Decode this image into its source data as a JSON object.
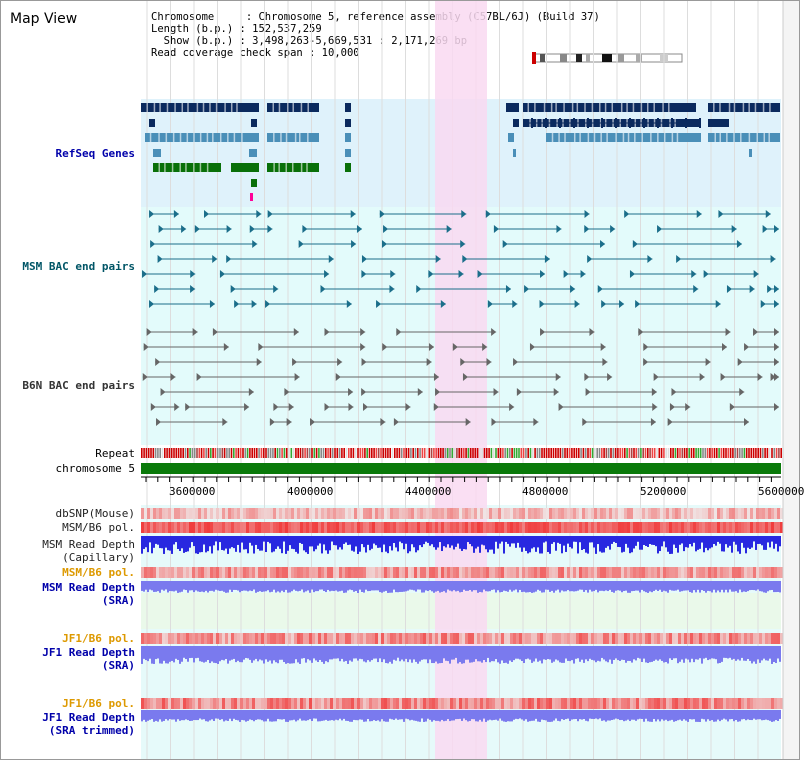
{
  "header": {
    "title": "Map View",
    "info_lines": [
      "Chromosome     : Chromosome 5, reference assembly (C57BL/6J) (Build 37)",
      "Length (b.p.) : 152,537,259",
      "  Show (b.p.) : 3,498,263-5,669,531 : 2,171,269 bp",
      "Read coverage check span : 10,000"
    ]
  },
  "tracks": {
    "refseq": "RefSeq Genes",
    "msm_bac": "MSM BAC end pairs",
    "b6n_bac": "B6N BAC end pairs",
    "repeat": "Repeat",
    "chromosome": "chromosome 5",
    "dbsnp": "dbSNP(Mouse)",
    "msm_b6_pol": "MSM/B6 pol.",
    "msm_depth_cap_1": "MSM Read Depth",
    "msm_depth_cap_2": "(Capillary)",
    "msm_b6_pol_2": "MSM/B6 pol.",
    "msm_depth_sra_1": "MSM Read Depth",
    "msm_depth_sra_2": "(SRA)",
    "jf1_b6_pol": "JF1/B6 pol.",
    "jf1_depth_sra_1": "JF1 Read Depth",
    "jf1_depth_sra_2": "(SRA)",
    "jf1_b6_pol_2": "JF1/B6 pol.",
    "jf1_depth_trim_1": "JF1 Read Depth",
    "jf1_depth_trim_2": "(SRA trimmed)"
  },
  "axis": {
    "ticks": [
      "3600000",
      "4000000",
      "4400000",
      "4800000",
      "5200000",
      "5600000"
    ]
  },
  "colors": {
    "refseq_bg": "#dff2fb",
    "bac_bg": "#e3fbfb",
    "highlight": "#f9d9f1",
    "gene_dark": "#0b2a5e",
    "gene_mid": "#4a8fb8",
    "gene_green": "#097009",
    "chromosome": "#0a7a0a",
    "snp": "#f6a3a3",
    "depth_blue": "#2828e0",
    "depth_light": "#7a7aee"
  }
}
